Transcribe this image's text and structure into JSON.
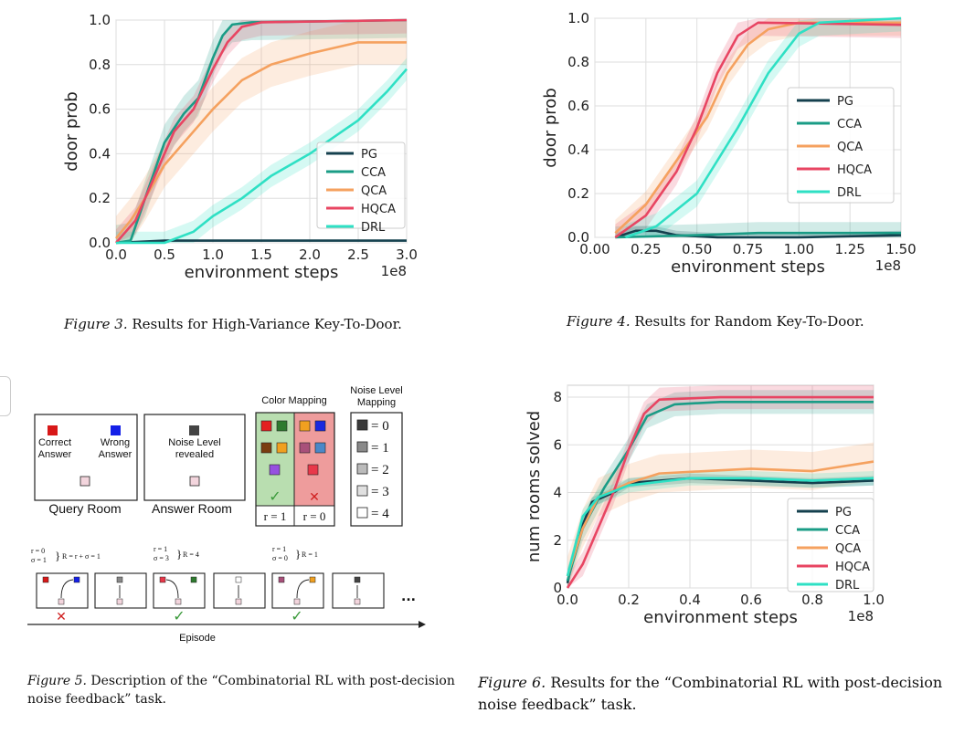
{
  "colors": {
    "PG": "#14404e",
    "CCA": "#1a9c86",
    "QCA": "#f5a15f",
    "HQCA": "#e84562",
    "DRL": "#2ee0c4"
  },
  "fig3": {
    "caption_prefix": "Figure 3.",
    "caption_text": "Results for High-Variance Key-To-Door.",
    "chart_data": {
      "type": "line",
      "xlabel": "environment steps",
      "ylabel": "door prob",
      "x_scale_note": "1e8",
      "xlim": [
        0,
        3.0
      ],
      "ylim": [
        0,
        1.0
      ],
      "x_ticks": [
        "0.0",
        "0.5",
        "1.0",
        "1.5",
        "2.0",
        "2.5",
        "3.0"
      ],
      "y_ticks": [
        "0.0",
        "0.2",
        "0.4",
        "0.6",
        "0.8",
        "1.0"
      ],
      "legend_position": "lower-right",
      "series": [
        {
          "name": "PG",
          "color": "#14404e",
          "band": 0.0,
          "points": [
            [
              0,
              0
            ],
            [
              0.5,
              0.01
            ],
            [
              1.0,
              0.01
            ],
            [
              2.0,
              0.01
            ],
            [
              3.0,
              0.01
            ]
          ]
        },
        {
          "name": "CCA",
          "color": "#1a9c86",
          "band": 0.08,
          "points": [
            [
              0,
              0
            ],
            [
              0.15,
              0.01
            ],
            [
              0.3,
              0.2
            ],
            [
              0.5,
              0.45
            ],
            [
              0.7,
              0.58
            ],
            [
              0.85,
              0.65
            ],
            [
              1.0,
              0.83
            ],
            [
              1.1,
              0.93
            ],
            [
              1.2,
              0.98
            ],
            [
              1.4,
              0.99
            ],
            [
              3.0,
              1.0
            ]
          ]
        },
        {
          "name": "QCA",
          "color": "#f5a15f",
          "band": 0.1,
          "points": [
            [
              0,
              0.02
            ],
            [
              0.15,
              0.1
            ],
            [
              0.3,
              0.2
            ],
            [
              0.5,
              0.35
            ],
            [
              0.7,
              0.45
            ],
            [
              1.0,
              0.6
            ],
            [
              1.3,
              0.73
            ],
            [
              1.6,
              0.8
            ],
            [
              2.0,
              0.85
            ],
            [
              2.5,
              0.9
            ],
            [
              3.0,
              0.9
            ]
          ]
        },
        {
          "name": "HQCA",
          "color": "#e84562",
          "band": 0.06,
          "points": [
            [
              0,
              0
            ],
            [
              0.2,
              0.1
            ],
            [
              0.4,
              0.3
            ],
            [
              0.6,
              0.5
            ],
            [
              0.8,
              0.6
            ],
            [
              1.0,
              0.78
            ],
            [
              1.15,
              0.9
            ],
            [
              1.3,
              0.97
            ],
            [
              1.5,
              0.99
            ],
            [
              3.0,
              1.0
            ]
          ]
        },
        {
          "name": "DRL",
          "color": "#2ee0c4",
          "band": 0.05,
          "points": [
            [
              0,
              0
            ],
            [
              0.5,
              0.0
            ],
            [
              0.8,
              0.05
            ],
            [
              1.0,
              0.12
            ],
            [
              1.3,
              0.2
            ],
            [
              1.6,
              0.3
            ],
            [
              2.0,
              0.4
            ],
            [
              2.5,
              0.55
            ],
            [
              2.8,
              0.68
            ],
            [
              3.0,
              0.78
            ]
          ]
        }
      ]
    }
  },
  "fig4": {
    "caption_prefix": "Figure 4.",
    "caption_text": "Results for Random Key-To-Door.",
    "chart_data": {
      "type": "line",
      "xlabel": "environment steps",
      "ylabel": "door prob",
      "x_scale_note": "1e8",
      "xlim": [
        0,
        1.5
      ],
      "ylim": [
        0,
        1.0
      ],
      "x_ticks": [
        "0.00",
        "0.25",
        "0.50",
        "0.75",
        "1.00",
        "1.25",
        "1.50"
      ],
      "y_ticks": [
        "0.0",
        "0.2",
        "0.4",
        "0.6",
        "0.8",
        "1.0"
      ],
      "legend_position": "center-right",
      "series": [
        {
          "name": "PG",
          "color": "#14404e",
          "band": 0.02,
          "points": [
            [
              0.1,
              0.0
            ],
            [
              0.2,
              0.03
            ],
            [
              0.3,
              0.03
            ],
            [
              0.4,
              0.01
            ],
            [
              0.6,
              0.0
            ],
            [
              1.0,
              0.0
            ],
            [
              1.5,
              0.01
            ]
          ]
        },
        {
          "name": "CCA",
          "color": "#1a9c86",
          "band": 0.05,
          "points": [
            [
              0.1,
              0.0
            ],
            [
              0.5,
              0.01
            ],
            [
              0.8,
              0.02
            ],
            [
              1.2,
              0.02
            ],
            [
              1.5,
              0.02
            ]
          ]
        },
        {
          "name": "QCA",
          "color": "#f5a15f",
          "band": 0.06,
          "points": [
            [
              0.1,
              0.02
            ],
            [
              0.25,
              0.15
            ],
            [
              0.4,
              0.35
            ],
            [
              0.55,
              0.55
            ],
            [
              0.65,
              0.75
            ],
            [
              0.75,
              0.88
            ],
            [
              0.85,
              0.95
            ],
            [
              1.0,
              0.98
            ],
            [
              1.5,
              0.98
            ]
          ]
        },
        {
          "name": "HQCA",
          "color": "#e84562",
          "band": 0.06,
          "points": [
            [
              0.1,
              0.0
            ],
            [
              0.25,
              0.1
            ],
            [
              0.4,
              0.3
            ],
            [
              0.5,
              0.5
            ],
            [
              0.6,
              0.75
            ],
            [
              0.7,
              0.92
            ],
            [
              0.8,
              0.98
            ],
            [
              1.5,
              0.97
            ]
          ]
        },
        {
          "name": "DRL",
          "color": "#2ee0c4",
          "band": 0.06,
          "points": [
            [
              0.15,
              0.0
            ],
            [
              0.3,
              0.05
            ],
            [
              0.5,
              0.2
            ],
            [
              0.7,
              0.5
            ],
            [
              0.85,
              0.75
            ],
            [
              1.0,
              0.93
            ],
            [
              1.1,
              0.98
            ],
            [
              1.5,
              1.0
            ]
          ]
        }
      ]
    }
  },
  "fig5": {
    "caption_prefix": "Figure 5.",
    "caption_text_line1": "Description of the “Combinatorial RL with post-decision",
    "caption_text_line2": "noise feedback” task.",
    "query_room": "Query Room",
    "answer_room": "Answer Room",
    "correct_answer": [
      "Correct",
      "Answer"
    ],
    "wrong_answer": [
      "Wrong",
      "Answer"
    ],
    "noise_revealed": [
      "Noise Level",
      "revealed"
    ],
    "color_mapping": "Color Mapping",
    "noise_level_mapping": [
      "Noise Level",
      "Mapping"
    ],
    "r1": "r = 1",
    "r0": "r = 0",
    "noise_levels": [
      "= 0",
      "= 1",
      "= 2",
      "= 3",
      "= 4"
    ],
    "episode": "Episode",
    "ellipsis": "...",
    "ann1": [
      "r = 0",
      "σ = 1",
      "R = r + σ = 1"
    ],
    "ann2": [
      "r = 1",
      "σ = 3",
      "R = 4"
    ],
    "ann3": [
      "r = 1",
      "σ = 0",
      "R = 1"
    ],
    "check": "✓",
    "cross": "✕"
  },
  "fig6": {
    "caption_prefix": "Figure 6.",
    "caption_text_line1": "Results for the “Combinatorial RL with post-decision",
    "caption_text_line2": "noise feedback” task.",
    "chart_data": {
      "type": "line",
      "xlabel": "environment steps",
      "ylabel": "num rooms solved",
      "x_scale_note": "1e8",
      "xlim": [
        0,
        1.0
      ],
      "ylim": [
        0,
        8.5
      ],
      "x_ticks": [
        "0.0",
        "0.2",
        "0.4",
        "0.6",
        "0.8",
        "1.0"
      ],
      "y_ticks": [
        "0",
        "2",
        "4",
        "6",
        "8"
      ],
      "legend_position": "lower-right",
      "series": [
        {
          "name": "PG",
          "color": "#14404e",
          "band": 0.2,
          "points": [
            [
              0,
              0.2
            ],
            [
              0.03,
              2
            ],
            [
              0.08,
              3.6
            ],
            [
              0.15,
              4.0
            ],
            [
              0.2,
              4.4
            ],
            [
              0.4,
              4.6
            ],
            [
              0.6,
              4.5
            ],
            [
              0.8,
              4.4
            ],
            [
              1.0,
              4.5
            ]
          ]
        },
        {
          "name": "CCA",
          "color": "#1a9c86",
          "band": 0.5,
          "points": [
            [
              0,
              0.3
            ],
            [
              0.05,
              2.5
            ],
            [
              0.12,
              4.2
            ],
            [
              0.2,
              5.8
            ],
            [
              0.26,
              7.2
            ],
            [
              0.35,
              7.7
            ],
            [
              0.5,
              7.8
            ],
            [
              0.7,
              7.8
            ],
            [
              1.0,
              7.8
            ]
          ]
        },
        {
          "name": "QCA",
          "color": "#f5a15f",
          "band": 0.8,
          "points": [
            [
              0,
              0.5
            ],
            [
              0.05,
              2.5
            ],
            [
              0.1,
              3.8
            ],
            [
              0.2,
              4.4
            ],
            [
              0.3,
              4.8
            ],
            [
              0.45,
              4.9
            ],
            [
              0.6,
              5.0
            ],
            [
              0.8,
              4.9
            ],
            [
              1.0,
              5.3
            ]
          ]
        },
        {
          "name": "HQCA",
          "color": "#e84562",
          "band": 0.5,
          "points": [
            [
              0,
              0
            ],
            [
              0.05,
              1.0
            ],
            [
              0.1,
              2.5
            ],
            [
              0.15,
              4.0
            ],
            [
              0.2,
              5.8
            ],
            [
              0.25,
              7.3
            ],
            [
              0.3,
              7.9
            ],
            [
              0.5,
              8.0
            ],
            [
              1.0,
              8.0
            ]
          ]
        },
        {
          "name": "DRL",
          "color": "#2ee0c4",
          "band": 0.3,
          "points": [
            [
              0,
              0.5
            ],
            [
              0.05,
              3
            ],
            [
              0.1,
              3.8
            ],
            [
              0.2,
              4.3
            ],
            [
              0.4,
              4.6
            ],
            [
              0.6,
              4.6
            ],
            [
              0.8,
              4.5
            ],
            [
              1.0,
              4.6
            ]
          ]
        }
      ]
    }
  }
}
